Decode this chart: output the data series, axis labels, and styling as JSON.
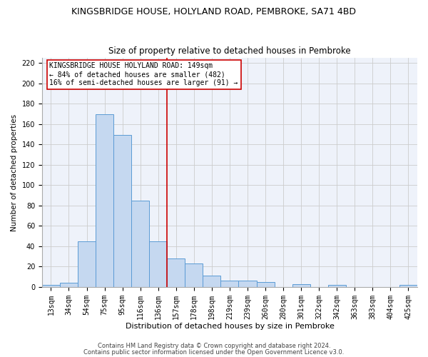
{
  "title1": "KINGSBRIDGE HOUSE, HOLYLAND ROAD, PEMBROKE, SA71 4BD",
  "title2": "Size of property relative to detached houses in Pembroke",
  "xlabel": "Distribution of detached houses by size in Pembroke",
  "ylabel": "Number of detached properties",
  "footer1": "Contains HM Land Registry data © Crown copyright and database right 2024.",
  "footer2": "Contains public sector information licensed under the Open Government Licence v3.0.",
  "bar_labels": [
    "13sqm",
    "34sqm",
    "54sqm",
    "75sqm",
    "95sqm",
    "116sqm",
    "136sqm",
    "157sqm",
    "178sqm",
    "198sqm",
    "219sqm",
    "239sqm",
    "260sqm",
    "280sqm",
    "301sqm",
    "322sqm",
    "342sqm",
    "363sqm",
    "383sqm",
    "404sqm",
    "425sqm"
  ],
  "bar_values": [
    2,
    4,
    45,
    170,
    149,
    85,
    45,
    28,
    23,
    11,
    6,
    6,
    5,
    0,
    3,
    0,
    2,
    0,
    0,
    0,
    2
  ],
  "bar_color": "#c5d8f0",
  "bar_edge_color": "#5b9bd5",
  "vline_x": 6.5,
  "vline_color": "#cc0000",
  "annotation_text": "KINGSBRIDGE HOUSE HOLYLAND ROAD: 149sqm\n← 84% of detached houses are smaller (482)\n16% of semi-detached houses are larger (91) →",
  "annotation_box_color": "#cc0000",
  "ylim": [
    0,
    225
  ],
  "yticks": [
    0,
    20,
    40,
    60,
    80,
    100,
    120,
    140,
    160,
    180,
    200,
    220
  ],
  "grid_color": "#cccccc",
  "bg_color": "#eef2fa",
  "title1_fontsize": 9,
  "title2_fontsize": 8.5,
  "xlabel_fontsize": 8,
  "ylabel_fontsize": 7.5,
  "tick_fontsize": 7,
  "annotation_fontsize": 7,
  "footer_fontsize": 6,
  "footer_color": "#444444"
}
